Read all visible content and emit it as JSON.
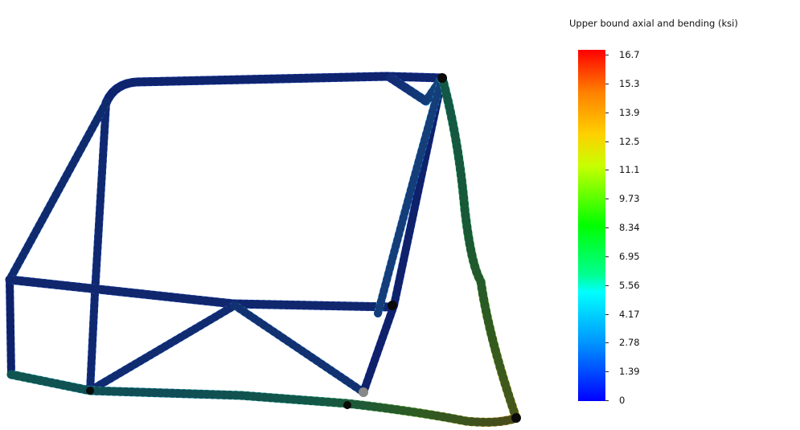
{
  "legend": {
    "title": "Upper bound axial and bending (ksi)",
    "ticks": [
      "16.7",
      "15.3",
      "13.9",
      "12.5",
      "11.1",
      "9.73",
      "8.34",
      "6.95",
      "5.56",
      "4.17",
      "2.78",
      "1.39",
      "0"
    ],
    "colors": {
      "max": "#ff0000",
      "high": "#ff8000",
      "upper_mid": "#ffd000",
      "mid": "#00ff00",
      "lower_mid": "#00ffff",
      "low": "#0090ff",
      "min": "#0000ff"
    }
  }
}
